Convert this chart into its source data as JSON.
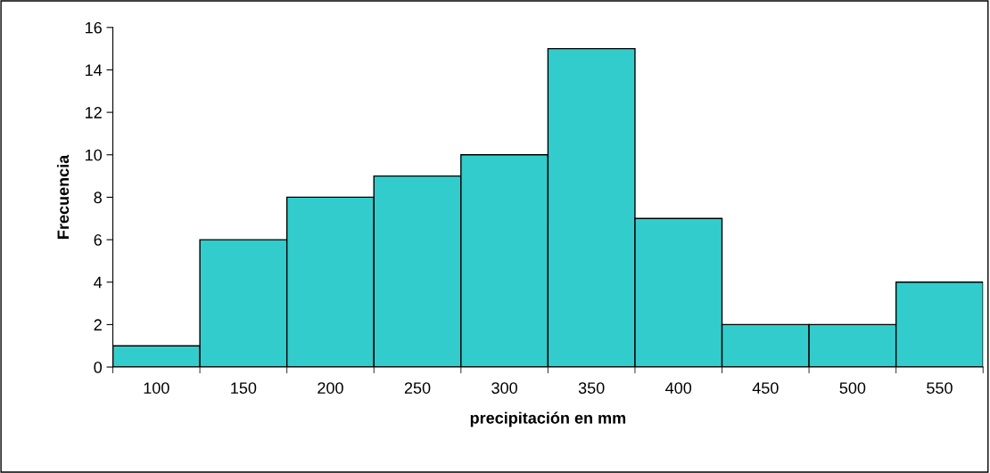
{
  "chart_data": {
    "type": "bar",
    "xlabel": "precipitación en mm",
    "ylabel": "Frecuencia",
    "categories": [
      "100",
      "150",
      "200",
      "250",
      "300",
      "350",
      "400",
      "450",
      "500",
      "550"
    ],
    "values": [
      1,
      6,
      8,
      9,
      10,
      15,
      7,
      2,
      2,
      4
    ],
    "color": "#33cccc",
    "ylim": [
      0,
      16
    ],
    "yticks": [
      0,
      2,
      4,
      6,
      8,
      10,
      12,
      14,
      16
    ],
    "grid": false,
    "legend": false
  }
}
